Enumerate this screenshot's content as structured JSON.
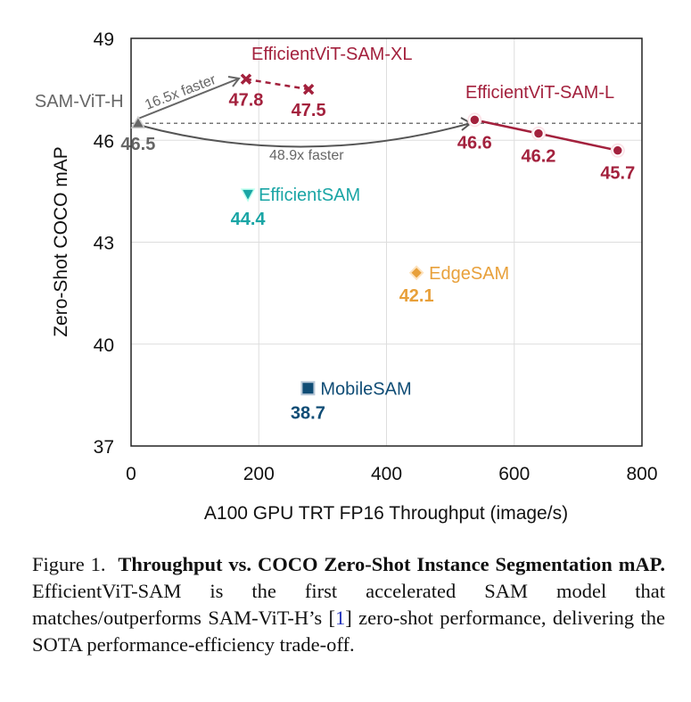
{
  "chart_data": {
    "type": "scatter",
    "xlabel": "A100 GPU TRT FP16 Throughput (image/s)",
    "ylabel": "Zero-Shot COCO mAP",
    "xlim": [
      0,
      800
    ],
    "ylim": [
      37,
      49
    ],
    "xticks": [
      "0",
      "200",
      "400",
      "600",
      "800"
    ],
    "yticks": [
      "37",
      "40",
      "43",
      "46",
      "49"
    ],
    "grid": true,
    "reference_line_y": 46.5,
    "series": [
      {
        "name": "SAM-ViT-H",
        "color": "#666666",
        "marker": "triangle-up",
        "points": [
          {
            "x": 11,
            "y": 46.5,
            "label": "46.5"
          }
        ]
      },
      {
        "name": "EfficientViT-SAM-XL",
        "color": "#a3213d",
        "marker": "x",
        "line": "dashed",
        "points": [
          {
            "x": 180,
            "y": 47.8,
            "label": "47.8"
          },
          {
            "x": 278,
            "y": 47.5,
            "label": "47.5"
          }
        ]
      },
      {
        "name": "EfficientViT-SAM-L",
        "color": "#a3213d",
        "marker": "circle",
        "line": "solid",
        "points": [
          {
            "x": 538,
            "y": 46.6,
            "label": "46.6"
          },
          {
            "x": 638,
            "y": 46.2,
            "label": "46.2"
          },
          {
            "x": 762,
            "y": 45.7,
            "label": "45.7"
          }
        ]
      },
      {
        "name": "EfficientSAM",
        "color": "#1aa5a5",
        "marker": "triangle-down",
        "points": [
          {
            "x": 183,
            "y": 44.4,
            "label": "44.4"
          }
        ]
      },
      {
        "name": "EdgeSAM",
        "color": "#e8a03a",
        "marker": "diamond",
        "points": [
          {
            "x": 447,
            "y": 42.1,
            "label": "42.1"
          }
        ]
      },
      {
        "name": "MobileSAM",
        "color": "#0f4c75",
        "marker": "square",
        "points": [
          {
            "x": 277,
            "y": 38.7,
            "label": "38.7"
          }
        ]
      }
    ],
    "annotations": [
      "16.5x faster",
      "48.9x faster"
    ]
  },
  "caption": {
    "prefix": "Figure 1.",
    "bold": "Throughput vs. COCO Zero-Shot Instance Segmentation mAP.",
    "text1": " EfficientViT-SAM is the first accelerated SAM model that matches/outperforms SAM-ViT-H’s [",
    "ref": "1",
    "text2": "] zero-shot performance, delivering the SOTA performance-efficiency trade-off."
  }
}
